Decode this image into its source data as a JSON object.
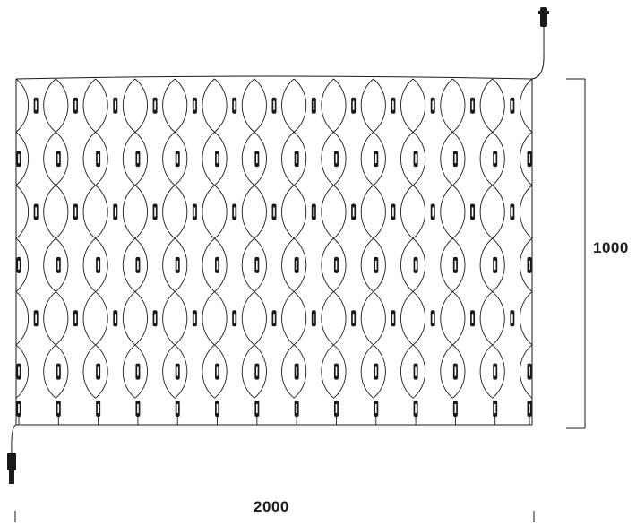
{
  "diagram": {
    "dimensions": {
      "height": "1000",
      "width": "2000"
    },
    "net": {
      "columns": 13,
      "rows": 6
    },
    "colors": {
      "wire": "#1a1a1a",
      "led": "#1a1a1a",
      "background": "#ffffff"
    }
  }
}
